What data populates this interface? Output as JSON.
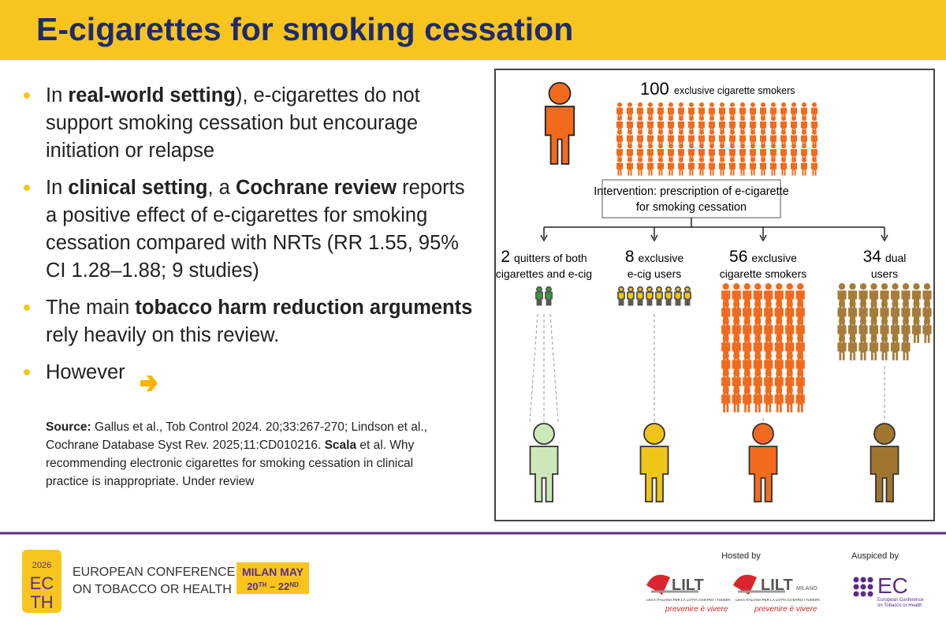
{
  "header": {
    "title": "E-cigarettes for smoking cessation"
  },
  "bullets": [
    [
      {
        "text": "In "
      },
      {
        "text": "real-world setting",
        "bold": true
      },
      {
        "text": "), e-cigarettes do not support smoking cessation but encourage initiation or relapse"
      }
    ],
    [
      {
        "text": "In "
      },
      {
        "text": "clinical setting",
        "bold": true
      },
      {
        "text": ", a "
      },
      {
        "text": "Cochrane review",
        "bold": true
      },
      {
        "text": " reports a positive effect of e-cigarettes for smoking cessation compared with NRTs (RR 1.55, 95% CI 1.28–1.88; 9 studies)"
      }
    ],
    [
      {
        "text": "The main "
      },
      {
        "text": "tobacco harm reduction arguments",
        "bold": true
      },
      {
        "text": " rely heavily on this review."
      }
    ],
    [
      {
        "text": "However"
      }
    ]
  ],
  "source": [
    {
      "text": "Source:",
      "bold": true
    },
    {
      "text": " Gallus et al., Tob Control 2024. 20;33:267-270; Lindson et al., Cochrane Database Syst Rev. 2025;11:CD010216. "
    },
    {
      "text": "Scala",
      "bold": true
    },
    {
      "text": " et al. Why recommending electronic cigarettes for smoking cessation in clinical practice is inappropriate. Under review"
    }
  ],
  "diagram": {
    "top": {
      "count": 100,
      "label": "exclusive cigarette smokers",
      "color": "#f26b1d"
    },
    "intervention": [
      "Intervention: prescription of e-cigarette",
      "for smoking cessation"
    ],
    "groups": [
      {
        "count": 2,
        "label": [
          "quitters of both",
          "cigarettes and e-cig"
        ],
        "color": "#3c9a3c",
        "figure": "#cde8b8"
      },
      {
        "count": 8,
        "label": [
          "exclusive",
          "e-cig users"
        ],
        "color": "#f0c419",
        "figure": "#f0c419"
      },
      {
        "count": 56,
        "label": [
          "exclusive",
          "cigarette smokers"
        ],
        "color": "#f26b1d",
        "figure": "#f26b1d"
      },
      {
        "count": 34,
        "label": [
          "dual",
          "users"
        ],
        "color": "#a67c3a",
        "figure": "#a0762f"
      }
    ]
  },
  "footer": {
    "year": "2026",
    "logo": [
      "EC",
      "TH"
    ],
    "conference": [
      "EUROPEAN CONFERENCE",
      "ON TOBACCO OR HEALTH"
    ],
    "city": "MILAN MAY",
    "dates": [
      {
        "text": "20"
      },
      {
        "text": "TH",
        "sup": true
      },
      {
        "text": " – 22"
      },
      {
        "text": "ND",
        "sup": true
      }
    ],
    "hosted": "Hosted by",
    "auspiced": "Auspiced by",
    "lilt": "LILT",
    "milano": "MILANO",
    "lilt_sub": "LEGA ITALIANA PER LA LOTTA CONTRO I TUMORI",
    "motto": "prevenire è vivere",
    "ec": "EC",
    "ec_sub": [
      "European Conference",
      "on Tobacco or Health"
    ]
  }
}
